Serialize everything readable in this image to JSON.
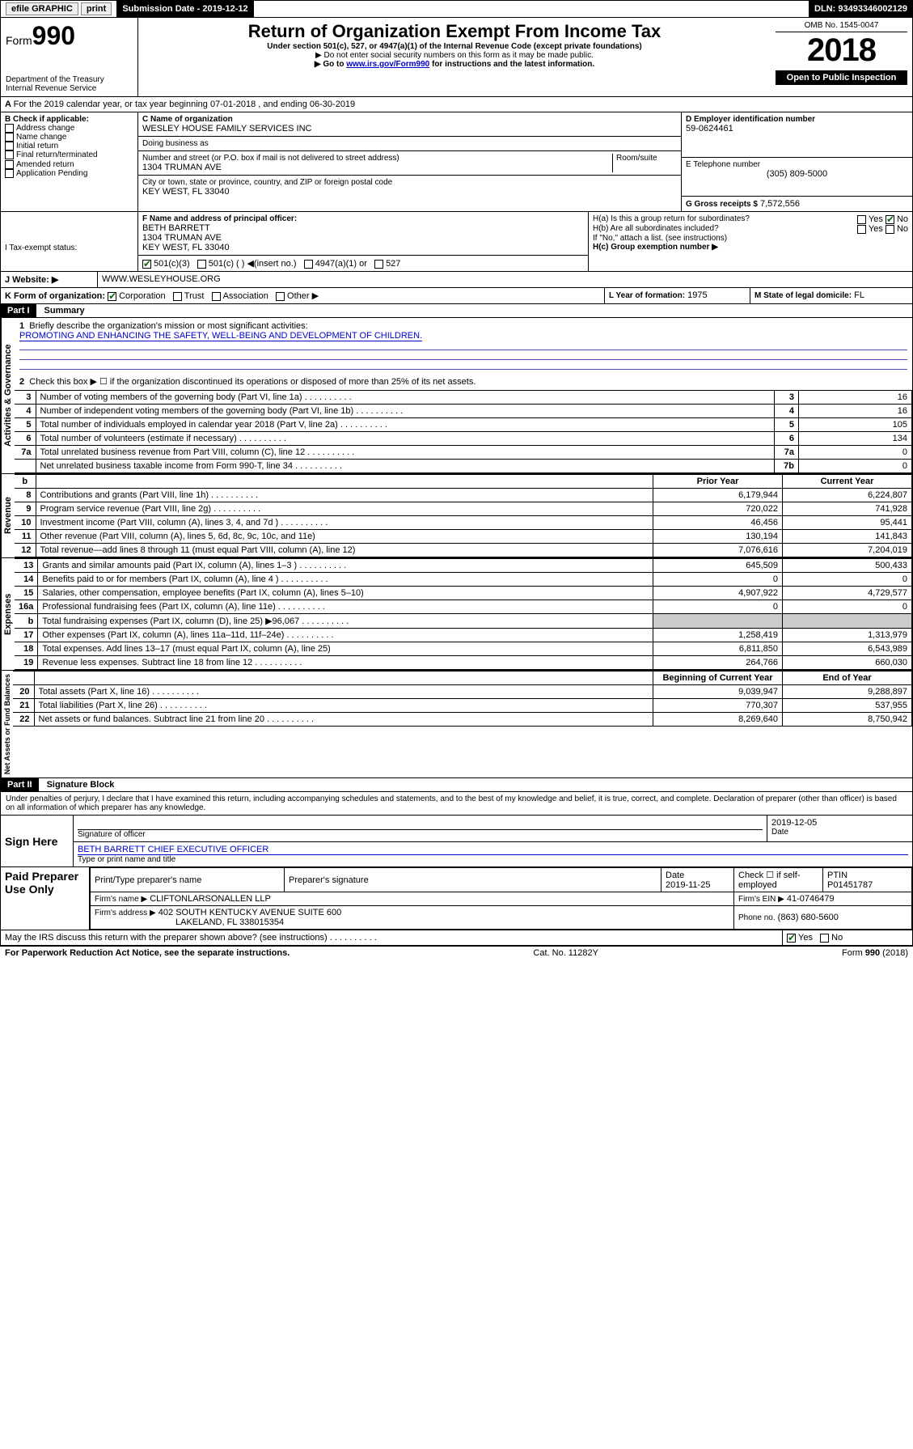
{
  "topbar": {
    "efile_label": "efile GRAPHIC",
    "print_label": "print",
    "submission_label": "Submission Date - 2019-12-12",
    "dln_label": "DLN: 93493346002129"
  },
  "header": {
    "form_label": "Form",
    "form_number": "990",
    "title": "Return of Organization Exempt From Income Tax",
    "subtitle": "Under section 501(c), 527, or 4947(a)(1) of the Internal Revenue Code (except private foundations)",
    "note1": "▶ Do not enter social security numbers on this form as it may be made public.",
    "note2_pre": "▶ Go to ",
    "note2_link": "www.irs.gov/Form990",
    "note2_post": " for instructions and the latest information.",
    "dept": "Department of the Treasury\nInternal Revenue Service",
    "omb": "OMB No. 1545-0047",
    "year": "2018",
    "open": "Open to Public Inspection"
  },
  "periodA": "For the 2019 calendar year, or tax year beginning 07-01-2018   , and ending 06-30-2019",
  "boxB": {
    "label": "B Check if applicable:",
    "items": [
      "Address change",
      "Name change",
      "Initial return",
      "Final return/terminated",
      "Amended return",
      "Application Pending"
    ]
  },
  "boxC": {
    "name_label": "C Name of organization",
    "name": "WESLEY HOUSE FAMILY SERVICES INC",
    "dba_label": "Doing business as",
    "addr_label": "Number and street (or P.O. box if mail is not delivered to street address)",
    "room_label": "Room/suite",
    "addr": "1304 TRUMAN AVE",
    "city_label": "City or town, state or province, country, and ZIP or foreign postal code",
    "city": "KEY WEST, FL  33040"
  },
  "boxD": {
    "label": "D Employer identification number",
    "value": "59-0624461"
  },
  "boxE": {
    "label": "E Telephone number",
    "value": "(305) 809-5000"
  },
  "boxF": {
    "label": "F  Name and address of principal officer:",
    "name": "BETH BARRETT",
    "addr1": "1304 TRUMAN AVE",
    "addr2": "KEY WEST, FL  33040"
  },
  "boxG": {
    "label": "G Gross receipts $",
    "value": "7,572,556"
  },
  "boxH": {
    "a": "H(a)  Is this a group return for subordinates?",
    "b": "H(b)  Are all subordinates included?",
    "b_note": "If \"No,\" attach a list. (see instructions)",
    "c": "H(c)  Group exemption number ▶",
    "yes": "Yes",
    "no": "No"
  },
  "boxI": {
    "label": "I     Tax-exempt status:",
    "opts": [
      "501(c)(3)",
      "501(c) (  ) ◀(insert no.)",
      "4947(a)(1) or",
      "527"
    ]
  },
  "boxJ": {
    "label": "J    Website: ▶",
    "value": "WWW.WESLEYHOUSE.ORG"
  },
  "boxK": {
    "label": "K Form of organization:",
    "opts": [
      "Corporation",
      "Trust",
      "Association",
      "Other ▶"
    ]
  },
  "boxL": {
    "label": "L Year of formation:",
    "value": "1975"
  },
  "boxM": {
    "label": "M State of legal domicile:",
    "value": "FL"
  },
  "part1": {
    "header_part": "Part I",
    "header_title": "Summary",
    "q1": "Briefly describe the organization's mission or most significant activities:",
    "mission": "PROMOTING AND ENHANCING THE SAFETY, WELL-BEING AND DEVELOPMENT OF CHILDREN.",
    "q2": "Check this box ▶ ☐  if the organization discontinued its operations or disposed of more than 25% of its net assets.",
    "sections": {
      "gov_label": "Activities & Governance",
      "rev_label": "Revenue",
      "exp_label": "Expenses",
      "net_label": "Net Assets or Fund Balances"
    },
    "gov_rows": [
      {
        "n": "3",
        "label": "Number of voting members of the governing body (Part VI, line 1a)",
        "box": "3",
        "val": "16"
      },
      {
        "n": "4",
        "label": "Number of independent voting members of the governing body (Part VI, line 1b)",
        "box": "4",
        "val": "16"
      },
      {
        "n": "5",
        "label": "Total number of individuals employed in calendar year 2018 (Part V, line 2a)",
        "box": "5",
        "val": "105"
      },
      {
        "n": "6",
        "label": "Total number of volunteers (estimate if necessary)",
        "box": "6",
        "val": "134"
      },
      {
        "n": "7a",
        "label": "Total unrelated business revenue from Part VIII, column (C), line 12",
        "box": "7a",
        "val": "0"
      },
      {
        "n": "",
        "label": "Net unrelated business taxable income from Form 990-T, line 34",
        "box": "7b",
        "val": "0"
      }
    ],
    "col_prior": "Prior Year",
    "col_current": "Current Year",
    "col_beg": "Beginning of Current Year",
    "col_end": "End of Year",
    "rev_rows": [
      {
        "n": "8",
        "label": "Contributions and grants (Part VIII, line 1h)",
        "p": "6,179,944",
        "c": "6,224,807"
      },
      {
        "n": "9",
        "label": "Program service revenue (Part VIII, line 2g)",
        "p": "720,022",
        "c": "741,928"
      },
      {
        "n": "10",
        "label": "Investment income (Part VIII, column (A), lines 3, 4, and 7d )",
        "p": "46,456",
        "c": "95,441"
      },
      {
        "n": "11",
        "label": "Other revenue (Part VIII, column (A), lines 5, 6d, 8c, 9c, 10c, and 11e)",
        "p": "130,194",
        "c": "141,843"
      },
      {
        "n": "12",
        "label": "Total revenue—add lines 8 through 11 (must equal Part VIII, column (A), line 12)",
        "p": "7,076,616",
        "c": "7,204,019"
      }
    ],
    "exp_rows": [
      {
        "n": "13",
        "label": "Grants and similar amounts paid (Part IX, column (A), lines 1–3 )",
        "p": "645,509",
        "c": "500,433"
      },
      {
        "n": "14",
        "label": "Benefits paid to or for members (Part IX, column (A), line 4 )",
        "p": "0",
        "c": "0"
      },
      {
        "n": "15",
        "label": "Salaries, other compensation, employee benefits (Part IX, column (A), lines 5–10)",
        "p": "4,907,922",
        "c": "4,729,577"
      },
      {
        "n": "16a",
        "label": "Professional fundraising fees (Part IX, column (A), line 11e)",
        "p": "0",
        "c": "0"
      },
      {
        "n": "b",
        "label": "Total fundraising expenses (Part IX, column (D), line 25) ▶96,067",
        "p": "",
        "c": ""
      },
      {
        "n": "17",
        "label": "Other expenses (Part IX, column (A), lines 11a–11d, 11f–24e)",
        "p": "1,258,419",
        "c": "1,313,979"
      },
      {
        "n": "18",
        "label": "Total expenses. Add lines 13–17 (must equal Part IX, column (A), line 25)",
        "p": "6,811,850",
        "c": "6,543,989"
      },
      {
        "n": "19",
        "label": "Revenue less expenses. Subtract line 18 from line 12",
        "p": "264,766",
        "c": "660,030"
      }
    ],
    "net_rows": [
      {
        "n": "20",
        "label": "Total assets (Part X, line 16)",
        "p": "9,039,947",
        "c": "9,288,897"
      },
      {
        "n": "21",
        "label": "Total liabilities (Part X, line 26)",
        "p": "770,307",
        "c": "537,955"
      },
      {
        "n": "22",
        "label": "Net assets or fund balances. Subtract line 21 from line 20",
        "p": "8,269,640",
        "c": "8,750,942"
      }
    ]
  },
  "part2": {
    "header_part": "Part II",
    "header_title": "Signature Block",
    "perjury": "Under penalties of perjury, I declare that I have examined this return, including accompanying schedules and statements, and to the best of my knowledge and belief, it is true, correct, and complete. Declaration of preparer (other than officer) is based on all information of which preparer has any knowledge.",
    "sign_here": "Sign Here",
    "sig_officer": "Signature of officer",
    "sig_date": "2019-12-05",
    "date_label": "Date",
    "officer_name": "BETH BARRETT  CHIEF EXECUTIVE OFFICER",
    "type_name_label": "Type or print name and title",
    "paid_label": "Paid Preparer Use Only",
    "prep_name_label": "Print/Type preparer's name",
    "prep_sig_label": "Preparer's signature",
    "prep_date_label": "Date",
    "prep_date": "2019-11-25",
    "check_self": "Check ☐ if self-employed",
    "ptin_label": "PTIN",
    "ptin": "P01451787",
    "firm_name_label": "Firm's name     ▶",
    "firm_name": "CLIFTONLARSONALLEN LLP",
    "firm_ein_label": "Firm's EIN ▶",
    "firm_ein": "41-0746479",
    "firm_addr_label": "Firm's address ▶",
    "firm_addr1": "402 SOUTH KENTUCKY AVENUE SUITE 600",
    "firm_addr2": "LAKELAND, FL  338015354",
    "phone_label": "Phone no.",
    "phone": "(863) 680-5600",
    "discuss": "May the IRS discuss this return with the preparer shown above? (see instructions)",
    "yes": "Yes",
    "no": "No"
  },
  "footer": {
    "pra": "For Paperwork Reduction Act Notice, see the separate instructions.",
    "cat": "Cat. No. 11282Y",
    "form": "Form 990 (2018)"
  }
}
